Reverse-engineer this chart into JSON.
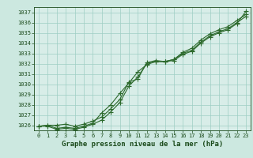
{
  "title": "Graphe pression niveau de la mer (hPa)",
  "x_hours": [
    0,
    1,
    2,
    3,
    4,
    5,
    6,
    7,
    8,
    9,
    10,
    11,
    12,
    13,
    14,
    15,
    16,
    17,
    18,
    19,
    20,
    21,
    22,
    23
  ],
  "line1": [
    1025.9,
    1026.0,
    1026.0,
    1026.1,
    1025.9,
    1026.1,
    1026.4,
    1026.8,
    1027.6,
    1028.5,
    1030.2,
    1030.5,
    1032.1,
    1032.3,
    1032.2,
    1032.4,
    1033.1,
    1033.5,
    1034.3,
    1034.9,
    1035.3,
    1035.6,
    1036.2,
    1036.8
  ],
  "line2": [
    1025.9,
    1026.0,
    1025.7,
    1025.8,
    1025.7,
    1025.9,
    1026.2,
    1027.2,
    1028.0,
    1029.1,
    1030.1,
    1031.2,
    1031.9,
    1032.2,
    1032.2,
    1032.4,
    1033.0,
    1033.3,
    1034.1,
    1034.7,
    1035.1,
    1035.4,
    1036.0,
    1036.6
  ],
  "line3": [
    1025.9,
    1025.9,
    1025.6,
    1025.7,
    1025.6,
    1025.8,
    1026.1,
    1026.5,
    1027.3,
    1028.2,
    1029.8,
    1030.7,
    1032.0,
    1032.2,
    1032.2,
    1032.3,
    1032.9,
    1033.2,
    1034.0,
    1034.6,
    1035.0,
    1035.3,
    1035.9,
    1037.1
  ],
  "line_color": "#2d6a2d",
  "bg_color": "#cce8e0",
  "grid_color": "#9ecec4",
  "plot_area_color": "#d8ede8",
  "ylim": [
    1025.5,
    1037.5
  ],
  "yticks": [
    1026,
    1027,
    1028,
    1029,
    1030,
    1031,
    1032,
    1033,
    1034,
    1035,
    1036,
    1037
  ],
  "xlim": [
    -0.5,
    23.5
  ],
  "xticks": [
    0,
    1,
    2,
    3,
    4,
    5,
    6,
    7,
    8,
    9,
    10,
    11,
    12,
    13,
    14,
    15,
    16,
    17,
    18,
    19,
    20,
    21,
    22,
    23
  ],
  "marker": "+",
  "marker_size": 4.0,
  "line_width": 0.8,
  "title_fontsize": 6.5,
  "tick_fontsize": 5.0,
  "title_color": "#1a4a1a",
  "tick_color": "#1a4a1a"
}
